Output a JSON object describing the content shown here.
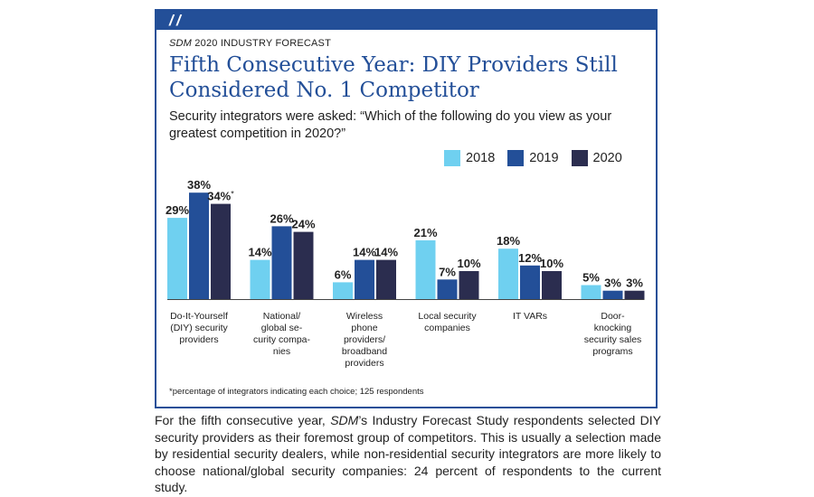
{
  "header": {
    "eyebrow_brand": "SDM",
    "eyebrow_rest": " 2020 INDUSTRY FORECAST",
    "title": "Fifth Consecutive Year: DIY Providers Still Considered No. 1 Competitor",
    "subtitle": "Security integrators were asked: “Which of the following do you view as your greatest competition in 2020?”"
  },
  "colors": {
    "frame": "#234f98",
    "y2018": "#6fd0f0",
    "y2019": "#234f98",
    "y2020": "#2b2d4f"
  },
  "chart_data": {
    "type": "bar",
    "categories": [
      [
        "Do-It-Yourself",
        "(DIY) security",
        "providers"
      ],
      [
        "National/",
        "global se-",
        "curity compa-",
        "nies"
      ],
      [
        "Wireless",
        "phone",
        "providers/",
        "broadband",
        "providers"
      ],
      [
        "Local security",
        "companies"
      ],
      [
        "IT VARs"
      ],
      [
        "Door-",
        "knocking",
        "security sales",
        "programs"
      ]
    ],
    "series": [
      {
        "name": "2018",
        "values": [
          29,
          14,
          6,
          21,
          18,
          5
        ]
      },
      {
        "name": "2019",
        "values": [
          38,
          26,
          14,
          7,
          12,
          3
        ]
      },
      {
        "name": "2020",
        "values": [
          34,
          24,
          14,
          10,
          10,
          3
        ]
      }
    ],
    "value_suffix": "%",
    "annotations": [
      {
        "series": 2,
        "index": 0,
        "text": "*"
      }
    ],
    "ylim": [
      0,
      40
    ],
    "grid": false,
    "legend": "top-right",
    "footnote": "*percentage of integrators indicating each choice; 125 respondents"
  },
  "caption": {
    "part1": "For the fifth consecutive year, ",
    "brand": "SDM",
    "part2": "’s Industry Forecast Study respondents selected DIY security providers as their foremost group of competitors. This is usually a selection made by residential security dealers, while non-residential security integrators are more likely to choose national/global security companies: 24 percent of respondents to the current study."
  }
}
